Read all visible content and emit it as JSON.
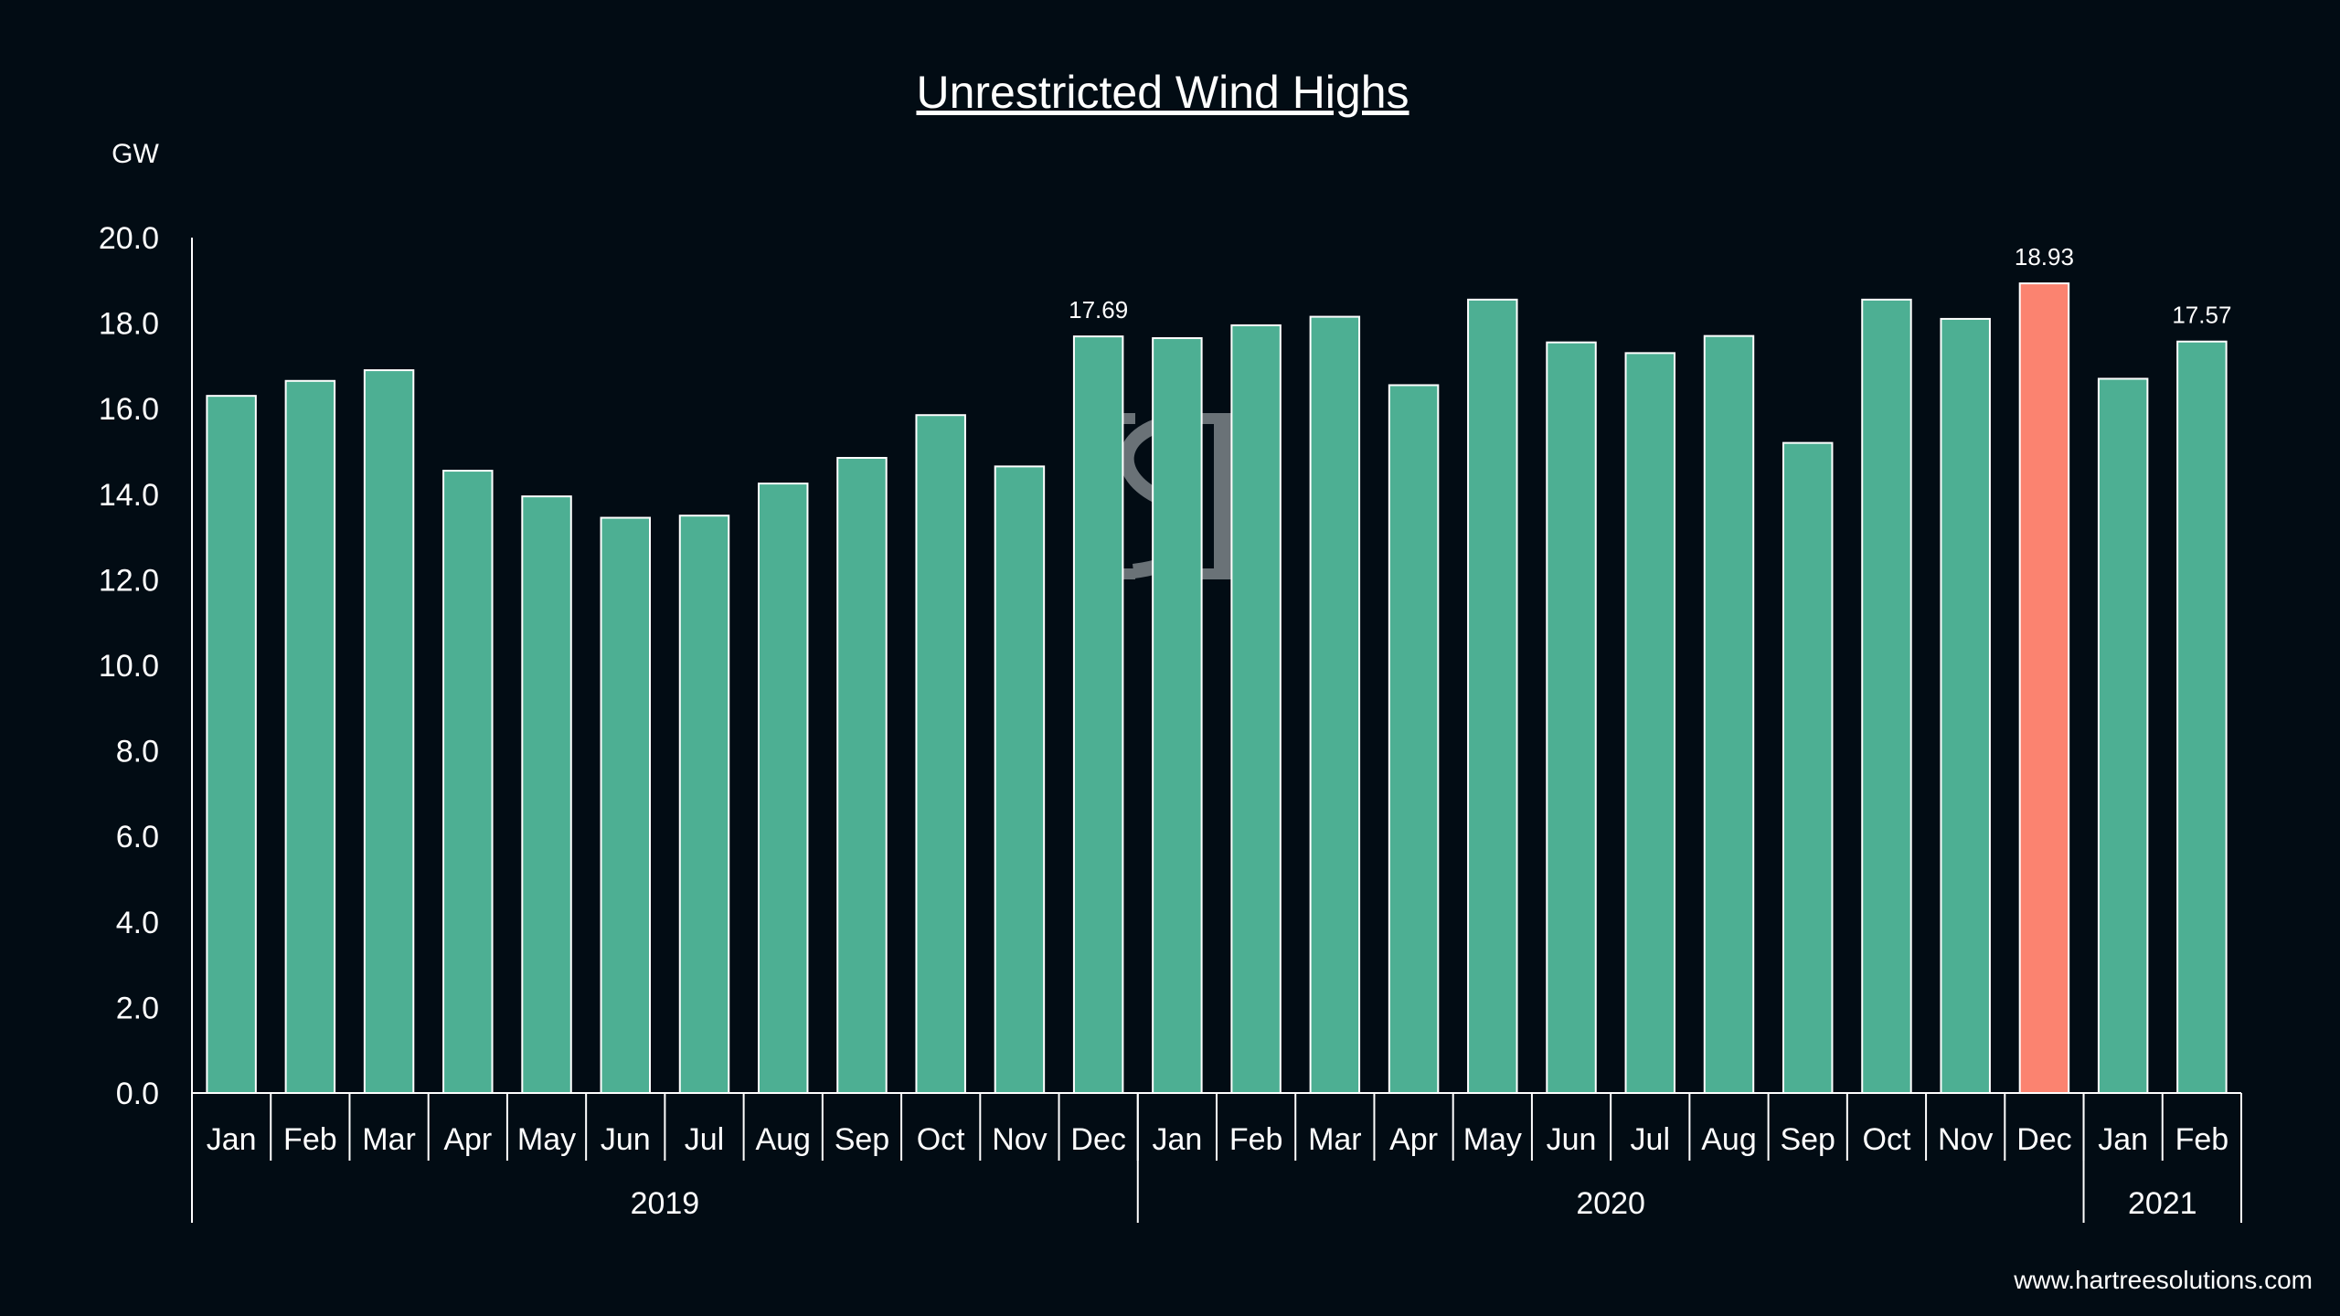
{
  "chart_data": {
    "type": "bar",
    "title": "Unrestricted Wind Highs",
    "ylabel": "GW",
    "xlabel": "",
    "ylim": [
      0,
      20
    ],
    "yticks": [
      "0.0",
      "2.0",
      "4.0",
      "6.0",
      "8.0",
      "10.0",
      "12.0",
      "14.0",
      "16.0",
      "18.0",
      "20.0"
    ],
    "grid": false,
    "categories": [
      "Jan",
      "Feb",
      "Mar",
      "Apr",
      "May",
      "Jun",
      "Jul",
      "Aug",
      "Sep",
      "Oct",
      "Nov",
      "Dec",
      "Jan",
      "Feb",
      "Mar",
      "Apr",
      "May",
      "Jun",
      "Jul",
      "Aug",
      "Sep",
      "Oct",
      "Nov",
      "Dec",
      "Jan",
      "Feb"
    ],
    "years": [
      {
        "label": "2019",
        "count": 12
      },
      {
        "label": "2020",
        "count": 12
      },
      {
        "label": "2021",
        "count": 2
      }
    ],
    "values": [
      16.3,
      16.65,
      16.9,
      14.55,
      13.95,
      13.45,
      13.5,
      14.25,
      14.85,
      15.85,
      14.65,
      17.69,
      17.65,
      17.95,
      18.15,
      16.55,
      18.55,
      17.55,
      17.3,
      17.7,
      15.2,
      18.55,
      18.1,
      18.93,
      16.7,
      17.57
    ],
    "data_labels": [
      {
        "index": 11,
        "text": "17.69"
      },
      {
        "index": 23,
        "text": "18.93"
      },
      {
        "index": 25,
        "text": "17.57"
      }
    ],
    "highlight_index": 23,
    "colors": {
      "bar": "#4daf93",
      "highlight": "#fb8370",
      "bar_outline": "#ffffff",
      "background": "#020c14"
    }
  },
  "source": "www.hartreesolutions.com"
}
